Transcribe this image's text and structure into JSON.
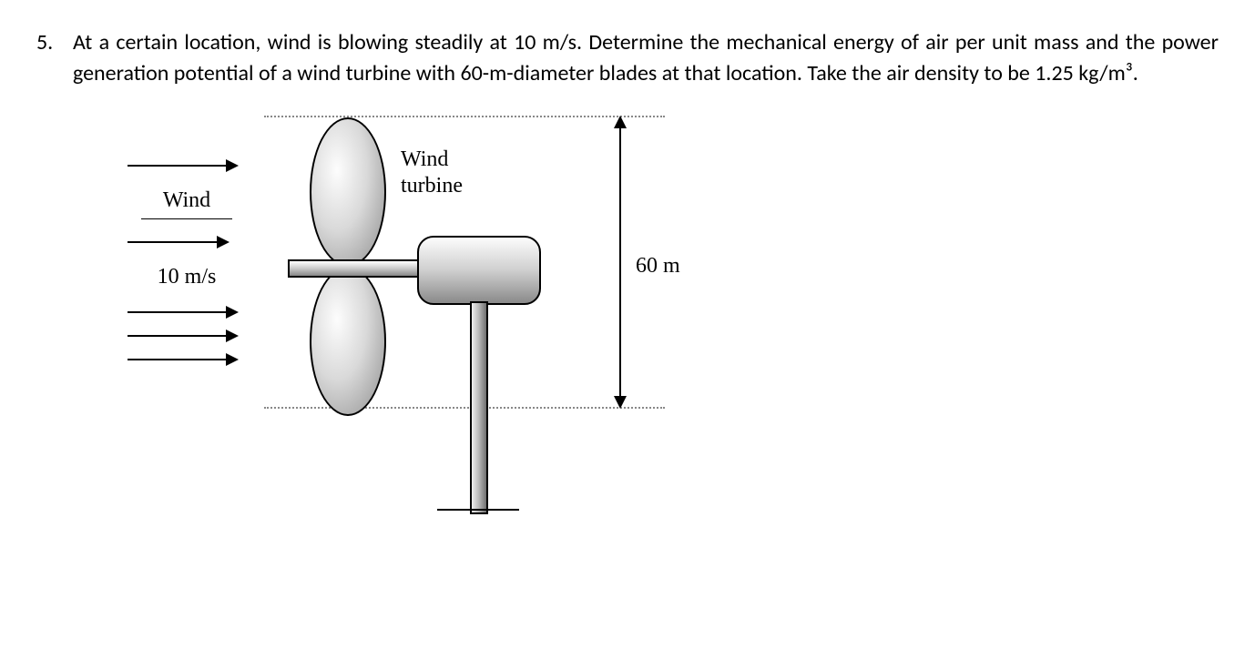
{
  "problem": {
    "number": "5.",
    "text": "At a certain location, wind is blowing steadily at 10 m/s. Determine the mechanical energy of air per unit mass and the power generation potential of a wind turbine with 60-m-diameter blades at that location. Take the air density to be 1.25 kg/m³."
  },
  "figure": {
    "wind_label": "Wind",
    "wind_speed": "10 m/s",
    "turbine_label_line1": "Wind",
    "turbine_label_line2": "turbine",
    "diameter_label": "60 m",
    "arrow_count": 5,
    "colors": {
      "text": "#000000",
      "dash": "#888888",
      "blade_light": "#fdfdfd",
      "blade_dark": "#8d8d8d",
      "metal_mid": "#c9c9c9"
    },
    "fonts": {
      "body_family": "Calibri",
      "figure_family": "Times New Roman",
      "body_size_pt": 18,
      "figure_size_pt": 18
    }
  }
}
